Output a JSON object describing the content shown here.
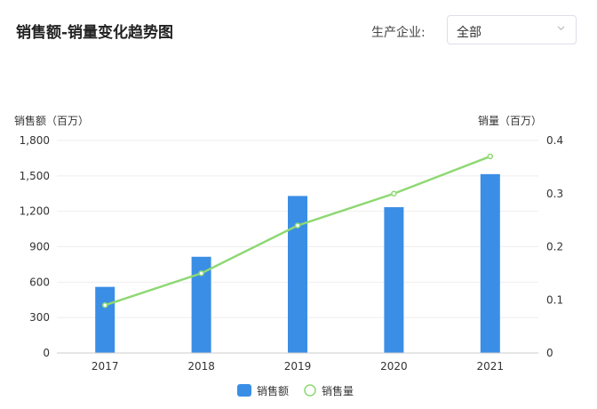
{
  "header": {
    "title": "销售额-销量变化趋势图",
    "filter_label": "生产企业:",
    "filter_value": "全部"
  },
  "colors": {
    "bar": "#3a8ee6",
    "line": "#8ed873"
  },
  "chart_data": {
    "type": "bar",
    "categories": [
      "2017",
      "2018",
      "2019",
      "2020",
      "2021"
    ],
    "series": [
      {
        "name": "销售额",
        "type": "bar",
        "axis": "left",
        "values": [
          560,
          815,
          1330,
          1235,
          1515
        ]
      },
      {
        "name": "销售量",
        "type": "line",
        "axis": "right",
        "values": [
          0.09,
          0.15,
          0.24,
          0.3,
          0.37
        ]
      }
    ],
    "ylabel_left": "销售额（百万）",
    "ylabel_right": "销量（百万）",
    "yticks_left": [
      "0",
      "300",
      "600",
      "900",
      "1,200",
      "1,500",
      "1,800"
    ],
    "yticks_right": [
      "0",
      "0.1",
      "0.2",
      "0.3",
      "0.4"
    ],
    "ylim_left": [
      0,
      1800
    ],
    "ylim_right": [
      0,
      0.4
    ],
    "grid": true,
    "legend": "bottom"
  }
}
